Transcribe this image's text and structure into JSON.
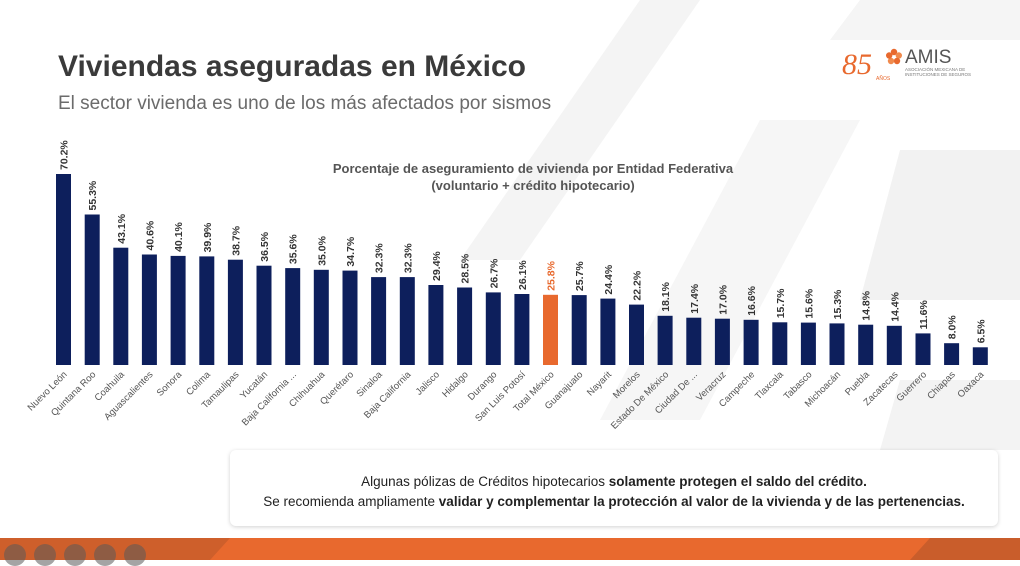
{
  "header": {
    "title": "Viviendas aseguradas en México",
    "subtitle": "El sector vivienda es uno de los más afectados por sismos"
  },
  "logo": {
    "number": "85",
    "anos": "AÑOS",
    "name": "AMIS",
    "line1": "ASOCIACIÓN MEXICANA DE",
    "line2": "INSTITUCIONES DE SEGUROS"
  },
  "chart_data": {
    "type": "bar",
    "title": "Porcentaje de aseguramiento de vivienda por Entidad Federativa",
    "subtitle": "(voluntario + crédito hipotecario)",
    "categories": [
      "Nuevo León",
      "Quintana Roo",
      "Coahuila",
      "Aguascalientes",
      "Sonora",
      "Colima",
      "Tamaulipas",
      "Yucatán",
      "Baja California ...",
      "Chihuahua",
      "Querétaro",
      "Sinaloa",
      "Baja California",
      "Jalisco",
      "Hidalgo",
      "Durango",
      "San Luis Potosí",
      "Total México",
      "Guanajuato",
      "Nayarit",
      "Morelos",
      "Estado De México",
      "Ciudad De ...",
      "Veracruz",
      "Campeche",
      "Tlaxcala",
      "Tabasco",
      "Michoacán",
      "Puebla",
      "Zacatecas",
      "Guerrero",
      "Chiapas",
      "Oaxaca"
    ],
    "values": [
      70.2,
      55.3,
      43.1,
      40.6,
      40.1,
      39.9,
      38.7,
      36.5,
      35.6,
      35.0,
      34.7,
      32.3,
      32.3,
      29.4,
      28.5,
      26.7,
      26.1,
      25.8,
      25.7,
      24.4,
      22.2,
      18.1,
      17.4,
      17.0,
      16.6,
      15.7,
      15.6,
      15.3,
      14.8,
      14.4,
      11.6,
      8.0,
      6.5
    ],
    "labels": [
      "70.2%",
      "55.3%",
      "43.1%",
      "40.6%",
      "40.1%",
      "39.9%",
      "38.7%",
      "36.5%",
      "35.6%",
      "35.0%",
      "34.7%",
      "32.3%",
      "32.3%",
      "29.4%",
      "28.5%",
      "26.7%",
      "26.1%",
      "25.8%",
      "25.7%",
      "24.4%",
      "22.2%",
      "18.1%",
      "17.4%",
      "17.0%",
      "16.6%",
      "15.7%",
      "15.6%",
      "15.3%",
      "14.8%",
      "14.4%",
      "11.6%",
      "8.0%",
      "6.5%"
    ],
    "highlight_index": 17,
    "colors": {
      "bar": "#0d1f5c",
      "highlight": "#e8692e",
      "label": "#333333",
      "highlight_label": "#e8692e"
    },
    "ylim": [
      0,
      72
    ]
  },
  "note": {
    "line1_a": "Algunas pólizas de Créditos hipotecarios ",
    "line1_b": "solamente protegen el saldo del crédito.",
    "line2_a": "Se recomienda ampliamente ",
    "line2_b": "validar y complementar la protección al valor de la vivienda y de las pertenencias."
  },
  "colors": {
    "accent": "#e8692e",
    "title": "#3a3a3a"
  }
}
